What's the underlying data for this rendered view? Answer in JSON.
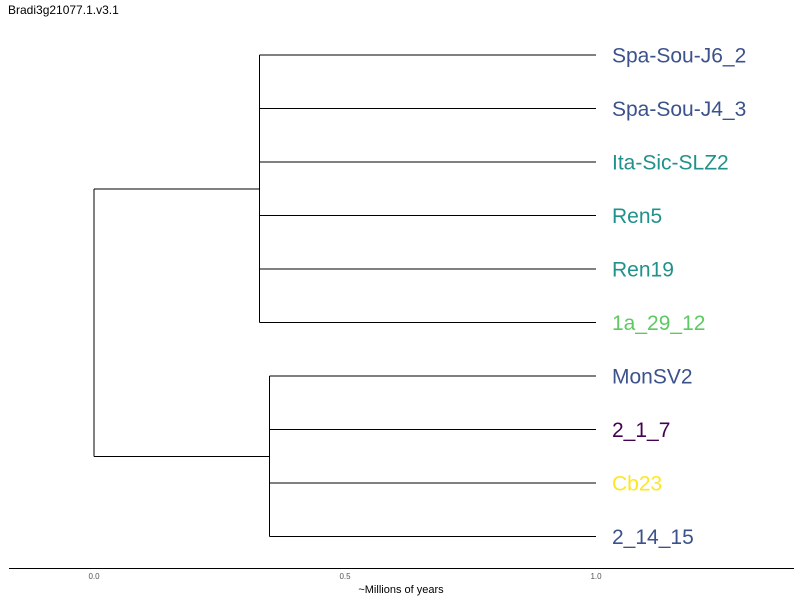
{
  "title": "Bradi3g21077.1.v3.1",
  "chart_data": {
    "type": "dendrogram",
    "xlabel": "~Millions of years",
    "xlim": [
      -0.17,
      1.4
    ],
    "ticks": [
      {
        "value": 0.0,
        "label": "0.0"
      },
      {
        "value": 0.5,
        "label": "0.5"
      },
      {
        "value": 1.0,
        "label": "1.0"
      }
    ],
    "leaves": [
      {
        "label": "Spa-Sou-J6_2",
        "color": "#3b528b"
      },
      {
        "label": "Spa-Sou-J4_3",
        "color": "#3b528b"
      },
      {
        "label": "Ita-Sic-SLZ2",
        "color": "#21918c"
      },
      {
        "label": "Ren5",
        "color": "#21918c"
      },
      {
        "label": "Ren19",
        "color": "#21918c"
      },
      {
        "label": "1a_29_12",
        "color": "#5ec962"
      },
      {
        "label": "MonSV2",
        "color": "#3b528b"
      },
      {
        "label": "2_1_7",
        "color": "#440154"
      },
      {
        "label": "Cb23",
        "color": "#fde725"
      },
      {
        "label": "2_14_15",
        "color": "#3b528b"
      }
    ],
    "root_age": 0.0,
    "clades": [
      {
        "age": 0.33,
        "leaves": [
          0,
          1,
          2,
          3,
          4,
          5
        ]
      },
      {
        "age": 0.35,
        "leaves": [
          6,
          7,
          8,
          9
        ]
      }
    ],
    "tip_age": 1.0
  }
}
